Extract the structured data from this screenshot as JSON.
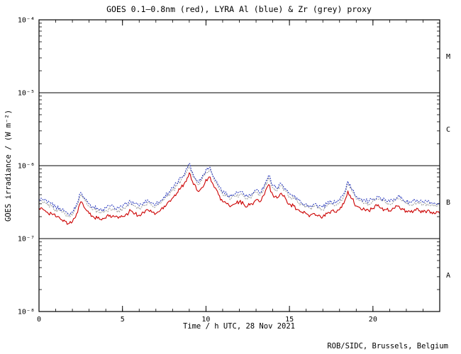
{
  "header": {
    "title": "GOES 0.1–0.8nm (red), LYRA Al (blue) & Zr (grey) proxy"
  },
  "footer": {
    "credit": "ROB/SIDC, Brussels, Belgium"
  },
  "chart_data": {
    "type": "line",
    "title": "GOES 0.1–0.8nm (red), LYRA Al (blue) & Zr (grey) proxy",
    "xlabel": "Time / h UTC, 28 Nov 2021",
    "ylabel": "GOES irradiance / (W m⁻²)",
    "x_range": [
      0,
      24
    ],
    "x_major_ticks": [
      0,
      5,
      10,
      15,
      20
    ],
    "x_minor_step": 1,
    "y_scale": "log",
    "y_range_exp": [
      -8,
      -4
    ],
    "y_tick_labels": [
      "10⁻⁸",
      "10⁻⁷",
      "10⁻⁶",
      "10⁻⁵",
      "10⁻⁴"
    ],
    "boundary_lines_exp": [
      -7,
      -6,
      -5
    ],
    "class_labels": [
      {
        "label": "M",
        "band_exp": [
          -5,
          -4
        ]
      },
      {
        "label": "C",
        "band_exp": [
          -6,
          -5
        ]
      },
      {
        "label": "B",
        "band_exp": [
          -7,
          -6
        ]
      },
      {
        "label": "A",
        "band_exp": [
          -8,
          -7
        ]
      }
    ],
    "grid": false,
    "legend": "none (colors named in title)",
    "x_step_h": 0.25,
    "value_unit": "1e-7 W m^-2",
    "series": [
      {
        "key": "goes",
        "name": "GOES 0.1–0.8nm",
        "color": "#cc0000",
        "style": "solid",
        "values_1e7": [
          2.6,
          2.5,
          2.3,
          2.2,
          2.0,
          1.9,
          1.8,
          1.6,
          1.7,
          2.2,
          3.2,
          2.6,
          2.2,
          2.0,
          1.9,
          1.8,
          1.9,
          2.1,
          2.0,
          1.9,
          2.0,
          2.2,
          2.4,
          2.2,
          2.1,
          2.3,
          2.5,
          2.3,
          2.2,
          2.4,
          2.8,
          3.2,
          3.6,
          4.2,
          5.0,
          6.0,
          8.0,
          5.5,
          4.5,
          5.0,
          6.5,
          7.0,
          5.0,
          4.0,
          3.2,
          3.0,
          2.8,
          3.0,
          3.2,
          3.0,
          2.8,
          3.0,
          3.4,
          3.2,
          4.0,
          5.5,
          4.0,
          3.6,
          4.2,
          3.6,
          3.0,
          2.8,
          2.5,
          2.3,
          2.2,
          2.1,
          2.2,
          2.1,
          2.0,
          2.2,
          2.4,
          2.3,
          2.5,
          3.0,
          4.5,
          3.5,
          2.8,
          2.6,
          2.5,
          2.4,
          2.6,
          2.8,
          2.6,
          2.5,
          2.4,
          2.6,
          2.8,
          2.6,
          2.4,
          2.3,
          2.5,
          2.4,
          2.3,
          2.4,
          2.3,
          2.2,
          2.2
        ]
      },
      {
        "key": "lyra-al",
        "name": "LYRA Al proxy",
        "color": "#2233bb",
        "style": "dotted",
        "values_1e7": [
          3.5,
          3.4,
          3.1,
          3.0,
          2.7,
          2.6,
          2.4,
          2.2,
          2.3,
          3.0,
          4.3,
          3.5,
          3.0,
          2.7,
          2.6,
          2.4,
          2.6,
          2.8,
          2.7,
          2.6,
          2.7,
          3.0,
          3.2,
          3.0,
          2.8,
          3.1,
          3.4,
          3.1,
          3.0,
          3.2,
          3.8,
          4.3,
          4.9,
          5.7,
          6.8,
          8.1,
          10.8,
          7.4,
          6.1,
          6.8,
          8.8,
          9.5,
          6.8,
          5.4,
          4.3,
          4.1,
          3.8,
          4.1,
          4.3,
          4.1,
          3.8,
          4.1,
          4.6,
          4.3,
          5.4,
          7.4,
          5.4,
          4.9,
          5.7,
          4.9,
          4.1,
          3.8,
          3.4,
          3.1,
          3.0,
          2.8,
          3.0,
          2.8,
          2.7,
          3.0,
          3.2,
          3.1,
          3.4,
          4.1,
          6.1,
          4.7,
          3.8,
          3.5,
          3.4,
          3.2,
          3.5,
          3.8,
          3.5,
          3.4,
          3.2,
          3.5,
          3.8,
          3.5,
          3.2,
          3.1,
          3.4,
          3.2,
          3.1,
          3.2,
          3.1,
          3.0,
          3.0
        ]
      },
      {
        "key": "lyra-zr",
        "name": "LYRA Zr proxy",
        "color": "#9a9a9a",
        "style": "dotted",
        "values_1e7": [
          3.3,
          3.1,
          2.9,
          2.8,
          2.5,
          2.4,
          2.3,
          2.0,
          2.1,
          2.8,
          4.0,
          3.3,
          2.8,
          2.5,
          2.4,
          2.3,
          2.4,
          2.6,
          2.5,
          2.4,
          2.5,
          2.8,
          3.0,
          2.8,
          2.6,
          2.9,
          3.1,
          2.9,
          2.8,
          3.0,
          3.5,
          4.0,
          4.5,
          5.3,
          6.3,
          7.5,
          10.0,
          6.9,
          5.6,
          6.3,
          8.1,
          8.8,
          6.3,
          5.0,
          4.0,
          3.8,
          3.5,
          3.8,
          4.0,
          3.8,
          3.5,
          3.8,
          4.3,
          4.0,
          5.0,
          6.9,
          5.0,
          4.5,
          5.3,
          4.5,
          3.8,
          3.5,
          3.1,
          2.9,
          2.8,
          2.6,
          2.8,
          2.6,
          2.5,
          2.8,
          3.0,
          2.9,
          3.1,
          3.8,
          5.6,
          4.4,
          3.5,
          3.3,
          3.1,
          3.0,
          3.3,
          3.5,
          3.3,
          3.1,
          3.0,
          3.3,
          3.5,
          3.3,
          3.0,
          2.9,
          3.1,
          3.0,
          2.9,
          3.0,
          2.9,
          2.8,
          2.8
        ]
      }
    ]
  }
}
